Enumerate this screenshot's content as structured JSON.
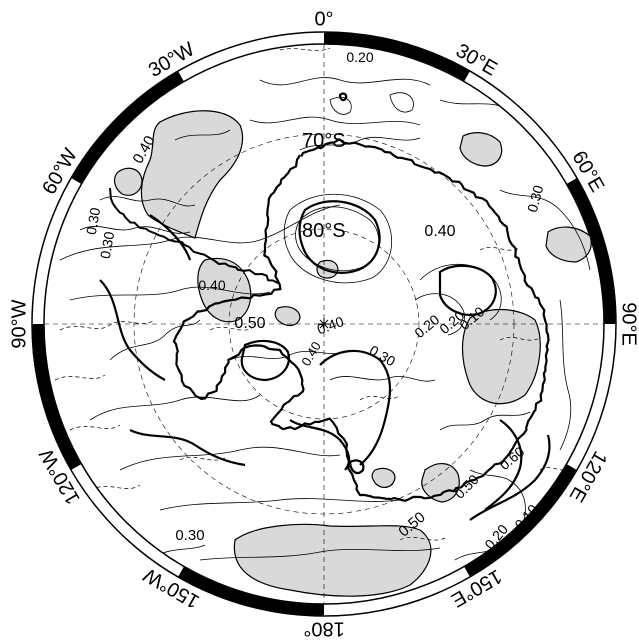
{
  "map": {
    "projection": "south-polar-stereographic",
    "colors": {
      "shade": "#d9d9d9",
      "ink": "#000000",
      "background": "#ffffff"
    },
    "longitude_labels": [
      "0°",
      "30°E",
      "60°E",
      "90°E",
      "120°E",
      "150°E",
      "180°",
      "150°W",
      "120°W",
      "90°W",
      "60°W",
      "30°W"
    ],
    "latitude_labels": [
      "70°S",
      "80°S"
    ],
    "contour_labels": [
      "0.20",
      "0.40",
      "0.40",
      "0.30",
      "0.30",
      "0.40",
      "0.50",
      "0.40",
      "0.20",
      "0.20",
      "0.10",
      "0.30",
      "0.50",
      "0.30",
      "0.40",
      "0.20",
      "0.10",
      "0.60",
      "0.50",
      "0.30"
    ]
  }
}
